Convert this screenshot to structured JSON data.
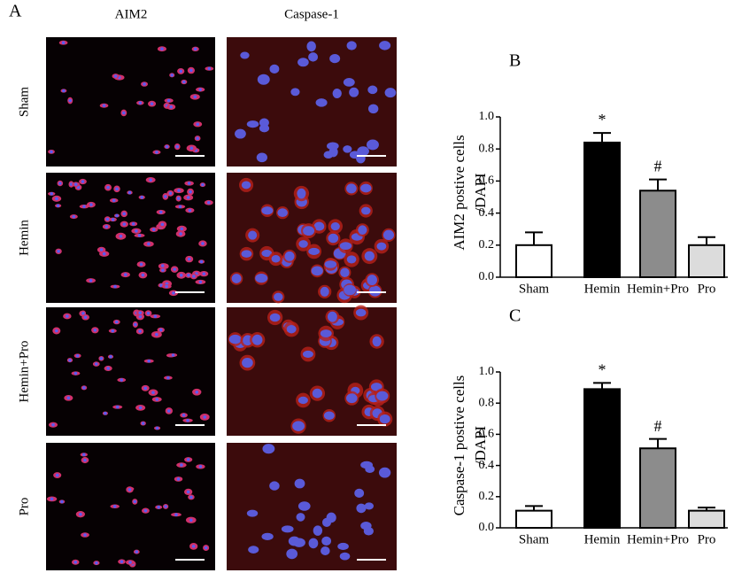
{
  "panel_a": {
    "title": "A",
    "columns": [
      "AIM2",
      "Caspase-1"
    ],
    "rows": [
      "Sham",
      "Hemin",
      "Hemin+Pro",
      "Pro"
    ]
  },
  "chart_data": [
    {
      "type": "bar",
      "title": "B",
      "ylabel": [
        "AIM2 postive cells",
        "/DAPI"
      ],
      "categories": [
        "Sham",
        "Hemin",
        "Hemin+Pro",
        "Pro"
      ],
      "values": [
        0.2,
        0.84,
        0.54,
        0.2
      ],
      "errors": [
        0.08,
        0.06,
        0.07,
        0.05
      ],
      "significance": [
        null,
        "*",
        "#",
        null
      ],
      "colors": [
        "#ffffff",
        "#000000",
        "#8c8c8c",
        "#dcdcdc"
      ],
      "ylim": [
        0,
        1
      ],
      "yticks": [
        {
          "value": 0,
          "label": "0.0"
        },
        0.2,
        0.4,
        0.6,
        0.8,
        {
          "value": 1,
          "label": "1.0"
        }
      ]
    },
    {
      "type": "bar",
      "title": "C",
      "ylabel": [
        "Caspase-1 postive cells",
        "/DAPI"
      ],
      "categories": [
        "Sham",
        "Hemin",
        "Hemin+Pro",
        "Pro"
      ],
      "values": [
        0.11,
        0.89,
        0.51,
        0.11
      ],
      "errors": [
        0.03,
        0.04,
        0.06,
        0.02
      ],
      "significance": [
        null,
        "*",
        "#",
        null
      ],
      "colors": [
        "#ffffff",
        "#000000",
        "#8c8c8c",
        "#dcdcdc"
      ],
      "ylim": [
        0,
        1
      ],
      "yticks": [
        {
          "value": 0,
          "label": "0.0"
        },
        0.2,
        0.4,
        0.6,
        0.8,
        {
          "value": 1,
          "label": "1.0"
        }
      ]
    }
  ]
}
